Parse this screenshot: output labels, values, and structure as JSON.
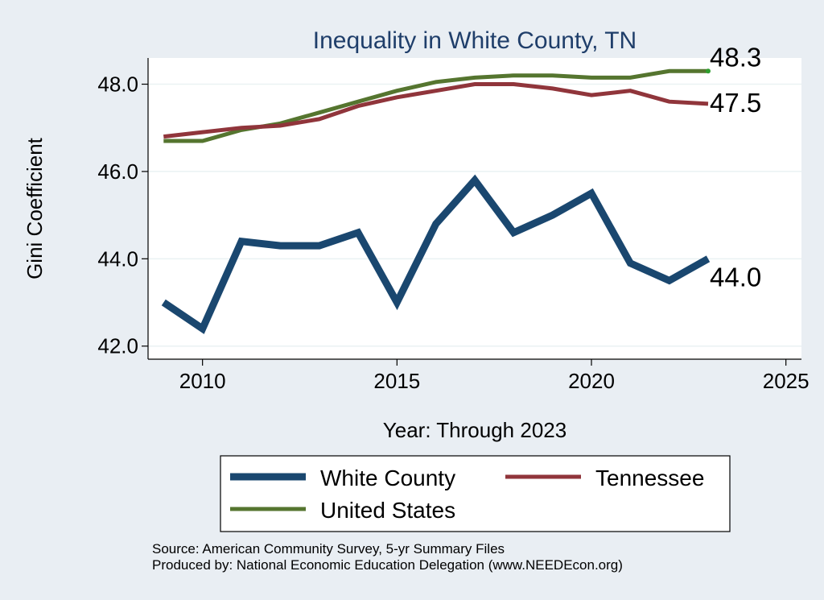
{
  "chart_data": {
    "type": "line",
    "title": "Inequality in White County, TN",
    "xlabel": "Year: Through 2023",
    "ylabel": "Gini Coefficient",
    "xlim": [
      2008.6,
      2025.4
    ],
    "ylim": [
      41.7,
      48.6
    ],
    "xticks": [
      2010,
      2015,
      2020,
      2025
    ],
    "yticks": [
      42.0,
      44.0,
      46.0,
      48.0
    ],
    "ytick_labels": [
      "42.0",
      "44.0",
      "46.0",
      "48.0"
    ],
    "grid": true,
    "x": [
      2009,
      2010,
      2011,
      2012,
      2013,
      2014,
      2015,
      2016,
      2017,
      2018,
      2019,
      2020,
      2021,
      2022,
      2023
    ],
    "series": [
      {
        "name": "White County",
        "color": "#1a476f",
        "end_label": "44.0",
        "values": [
          43.0,
          42.4,
          44.4,
          44.3,
          44.3,
          44.6,
          43.0,
          44.8,
          45.8,
          44.6,
          45.0,
          45.5,
          43.9,
          43.5,
          44.0
        ]
      },
      {
        "name": "Tennessee",
        "color": "#90353b",
        "end_label": "47.5",
        "values": [
          46.8,
          46.9,
          47.0,
          47.05,
          47.2,
          47.5,
          47.7,
          47.85,
          48.0,
          48.0,
          47.9,
          47.75,
          47.85,
          47.6,
          47.55
        ]
      },
      {
        "name": "United States",
        "color": "#55752f",
        "end_label": "48.3",
        "values": [
          46.7,
          46.7,
          46.95,
          47.1,
          47.35,
          47.6,
          47.85,
          48.05,
          48.15,
          48.2,
          48.2,
          48.15,
          48.15,
          48.3,
          48.3
        ]
      }
    ],
    "legend": {
      "position": "bottom",
      "entries": [
        "White County",
        "Tennessee",
        "United States"
      ]
    },
    "notes": [
      "Source: American Community Survey, 5-yr Summary Files",
      "Produced by: National Economic Education Delegation (www.NEEDEcon.org)"
    ]
  }
}
